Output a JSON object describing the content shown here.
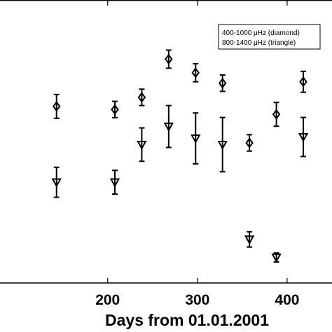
{
  "chart_data": {
    "type": "scatter",
    "xlabel": "Days from 01.01.2001",
    "ylabel": "",
    "xlim": [
      80,
      450
    ],
    "ylim": [
      0,
      100
    ],
    "xticks": [
      200,
      300,
      400
    ],
    "xtick_labels": [
      "200",
      "300",
      "400"
    ],
    "legend": {
      "position": "top-right",
      "entries": [
        "400-1000 μHz (diamond)",
        "800-1400 μHz (triangle)"
      ]
    },
    "series": [
      {
        "name": "400-1000 μHz (diamond)",
        "marker": "diamond",
        "points": [
          {
            "x": 143,
            "y": 62.4,
            "err": 4.2
          },
          {
            "x": 208,
            "y": 61.3,
            "err": 2.9
          },
          {
            "x": 238,
            "y": 65.6,
            "err": 2.9
          },
          {
            "x": 268,
            "y": 79.1,
            "err": 3.2
          },
          {
            "x": 298,
            "y": 74.3,
            "err": 3.2
          },
          {
            "x": 328,
            "y": 70.6,
            "err": 2.9
          },
          {
            "x": 358,
            "y": 49.5,
            "err": 2.9
          },
          {
            "x": 388,
            "y": 59.6,
            "err": 4.2
          },
          {
            "x": 418,
            "y": 71.1,
            "err": 3.7
          }
        ]
      },
      {
        "name": "800-1400 μHz (triangle)",
        "marker": "triangle",
        "points": [
          {
            "x": 143,
            "y": 35.6,
            "err": 5.3
          },
          {
            "x": 208,
            "y": 35.6,
            "err": 4.2
          },
          {
            "x": 238,
            "y": 48.9,
            "err": 5.9
          },
          {
            "x": 268,
            "y": 55.3,
            "err": 7.4
          },
          {
            "x": 298,
            "y": 51.1,
            "err": 9.0
          },
          {
            "x": 328,
            "y": 48.9,
            "err": 9.6
          },
          {
            "x": 358,
            "y": 15.4,
            "err": 2.7
          },
          {
            "x": 388,
            "y": 9.0,
            "err": 1.6
          },
          {
            "x": 418,
            "y": 51.6,
            "err": 6.9
          }
        ]
      }
    ]
  }
}
